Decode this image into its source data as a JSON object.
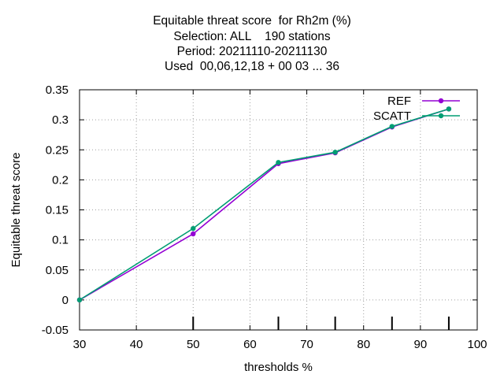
{
  "chart_data": {
    "type": "line",
    "title_lines": [
      "Equitable threat score  for Rh2m (%)",
      "Selection: ALL    190 stations",
      "Period: 20211110-20211130",
      "Used  00,06,12,18 + 00 03 ... 36"
    ],
    "xlabel": "thresholds %",
    "ylabel": "Equitable threat score",
    "xlim": [
      30,
      100
    ],
    "ylim": [
      -0.05,
      0.35
    ],
    "x_ticks": [
      "30",
      "40",
      "50",
      "60",
      "70",
      "80",
      "90",
      "100"
    ],
    "y_ticks": [
      "-0.05",
      "0",
      "0.05",
      "0.1",
      "0.15",
      "0.2",
      "0.25",
      "0.3",
      "0.35"
    ],
    "grid": true,
    "legend_position": "top-right",
    "sample_markers_x": [
      50,
      65,
      75,
      85,
      95
    ],
    "series": [
      {
        "name": "REF",
        "color": "#9400d3",
        "x": [
          30,
          50,
          65,
          75,
          85,
          95
        ],
        "y": [
          0.0,
          0.11,
          0.227,
          0.245,
          0.288,
          0.318
        ]
      },
      {
        "name": "SCATT",
        "color": "#009e73",
        "x": [
          30,
          50,
          65,
          75,
          85,
          95
        ],
        "y": [
          0.0,
          0.119,
          0.229,
          0.246,
          0.289,
          0.318
        ]
      }
    ]
  }
}
